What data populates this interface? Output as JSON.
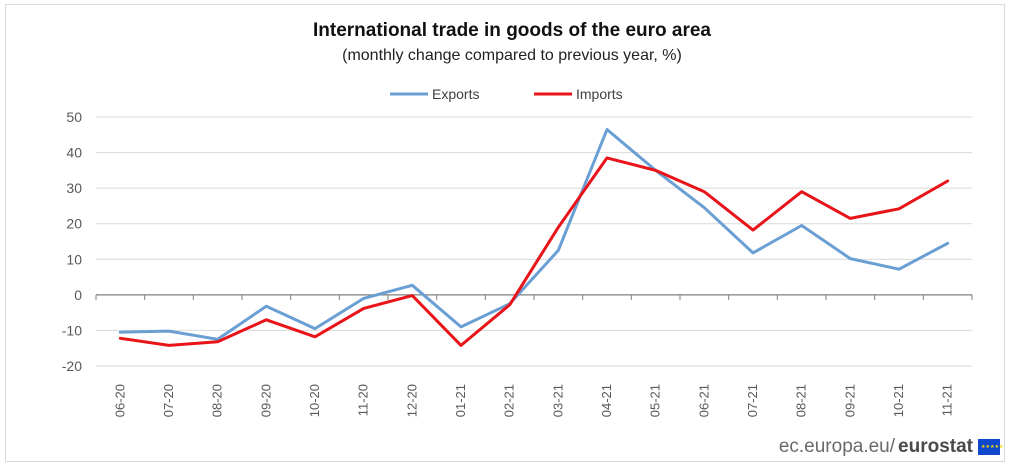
{
  "chart_data": {
    "type": "line",
    "title": "International trade in goods of the euro area",
    "subtitle": "(monthly change compared to previous year, %)",
    "categories": [
      "06-20",
      "07-20",
      "08-20",
      "09-20",
      "10-20",
      "11-20",
      "12-20",
      "01-21",
      "02-21",
      "03-21",
      "04-21",
      "05-21",
      "06-21",
      "07-21",
      "08-21",
      "09-21",
      "10-21",
      "11-21"
    ],
    "series": [
      {
        "name": "Exports",
        "color": "#6a9fd4",
        "values": [
          -10.5,
          -10.2,
          -12.5,
          -3.2,
          -9.5,
          -1.0,
          2.7,
          -9.0,
          -2.5,
          12.5,
          46.5,
          35.0,
          24.5,
          11.8,
          19.5,
          10.2,
          7.2,
          14.5
        ]
      },
      {
        "name": "Imports",
        "color": "#e8141a",
        "values": [
          -12.2,
          -14.2,
          -13.2,
          -7.0,
          -11.8,
          -3.8,
          -0.2,
          -14.2,
          -2.8,
          19.0,
          38.5,
          35.0,
          29.0,
          18.2,
          29.0,
          21.5,
          24.2,
          32.0
        ]
      }
    ],
    "ylim": [
      -20,
      50
    ],
    "yticks": [
      50,
      40,
      30,
      20,
      10,
      0,
      -10,
      -20
    ],
    "legend_position": "top-center",
    "grid": true
  },
  "footer": {
    "site": "ec.europa.eu/",
    "brand": "eurostat",
    "logo": "eu-flag-icon"
  }
}
